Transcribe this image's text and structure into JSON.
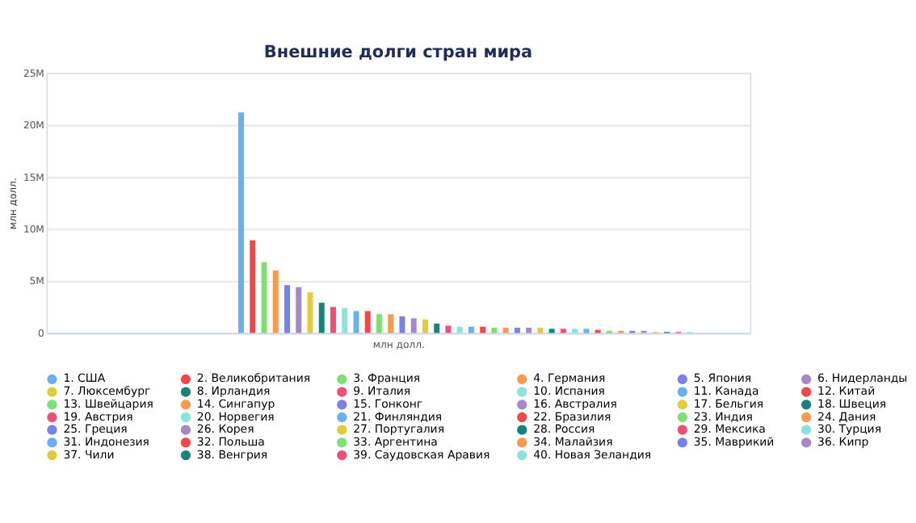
{
  "chart_data": {
    "type": "bar",
    "title": "Внешние долги стран мира",
    "xlabel": "млн долл.",
    "ylabel": "млн долл.",
    "categories": [
      null
    ],
    "series": [
      {
        "name": "1. США",
        "color": "#6ab0ee",
        "values": [
          21.2
        ]
      },
      {
        "name": "2. Великобритания",
        "color": "#f04848",
        "values": [
          8.9
        ]
      },
      {
        "name": "3. Франция",
        "color": "#7ee071",
        "values": [
          6.8
        ]
      },
      {
        "name": "4. Германия",
        "color": "#f79a4e",
        "values": [
          6.0
        ]
      },
      {
        "name": "5. Япония",
        "color": "#7b7fe8",
        "values": [
          4.6
        ]
      },
      {
        "name": "6. Нидерланды",
        "color": "#a687c7",
        "values": [
          4.4
        ]
      },
      {
        "name": "7. Люксембург",
        "color": "#e3cb3c",
        "values": [
          3.9
        ]
      },
      {
        "name": "8. Ирландия",
        "color": "#16847d",
        "values": [
          2.9
        ]
      },
      {
        "name": "9. Италия",
        "color": "#ee4f73",
        "values": [
          2.5
        ]
      },
      {
        "name": "10. Испания",
        "color": "#88e4dc",
        "values": [
          2.4
        ]
      },
      {
        "name": "11. Канада",
        "color": "#6ab0ee",
        "values": [
          2.1
        ]
      },
      {
        "name": "12. Китай",
        "color": "#f04848",
        "values": [
          2.1
        ]
      },
      {
        "name": "13. Швейцария",
        "color": "#7ee071",
        "values": [
          1.8
        ]
      },
      {
        "name": "14. Сингапур",
        "color": "#f79a4e",
        "values": [
          1.8
        ]
      },
      {
        "name": "15. Гонконг",
        "color": "#7b7fe8",
        "values": [
          1.6
        ]
      },
      {
        "name": "16. Австралия",
        "color": "#a687c7",
        "values": [
          1.4
        ]
      },
      {
        "name": "17. Бельгия",
        "color": "#e3cb3c",
        "values": [
          1.3
        ]
      },
      {
        "name": "18. Швеция",
        "color": "#16847d",
        "values": [
          0.9
        ]
      },
      {
        "name": "19. Австрия",
        "color": "#ee4f73",
        "values": [
          0.7
        ]
      },
      {
        "name": "20. Норвегия",
        "color": "#88e4dc",
        "values": [
          0.6
        ]
      },
      {
        "name": "21. Финляндия",
        "color": "#6ab0ee",
        "values": [
          0.6
        ]
      },
      {
        "name": "22. Бразилия",
        "color": "#f04848",
        "values": [
          0.6
        ]
      },
      {
        "name": "23. Индия",
        "color": "#7ee071",
        "values": [
          0.5
        ]
      },
      {
        "name": "24. Дания",
        "color": "#f79a4e",
        "values": [
          0.5
        ]
      },
      {
        "name": "25. Греция",
        "color": "#7b7fe8",
        "values": [
          0.5
        ]
      },
      {
        "name": "26. Корея",
        "color": "#a687c7",
        "values": [
          0.5
        ]
      },
      {
        "name": "27. Португалия",
        "color": "#e3cb3c",
        "values": [
          0.5
        ]
      },
      {
        "name": "28. Россия",
        "color": "#16847d",
        "values": [
          0.4
        ]
      },
      {
        "name": "29. Мексика",
        "color": "#ee4f73",
        "values": [
          0.4
        ]
      },
      {
        "name": "30. Турция",
        "color": "#88e4dc",
        "values": [
          0.4
        ]
      },
      {
        "name": "31. Индонезия",
        "color": "#6ab0ee",
        "values": [
          0.4
        ]
      },
      {
        "name": "32. Польша",
        "color": "#f04848",
        "values": [
          0.3
        ]
      },
      {
        "name": "33. Аргентина",
        "color": "#7ee071",
        "values": [
          0.2
        ]
      },
      {
        "name": "34. Малайзия",
        "color": "#f79a4e",
        "values": [
          0.2
        ]
      },
      {
        "name": "35. Маврикий",
        "color": "#7b7fe8",
        "values": [
          0.2
        ]
      },
      {
        "name": "36. Кипр",
        "color": "#a687c7",
        "values": [
          0.2
        ]
      },
      {
        "name": "37. Чили",
        "color": "#e3cb3c",
        "values": [
          0.1
        ]
      },
      {
        "name": "38. Венгрия",
        "color": "#16847d",
        "values": [
          0.1
        ]
      },
      {
        "name": "39. Саудовская Аравия",
        "color": "#ee4f73",
        "values": [
          0.1
        ]
      },
      {
        "name": "40. Новая Зеландия",
        "color": "#88e4dc",
        "values": [
          0.1
        ]
      }
    ],
    "ylim": [
      0,
      25
    ],
    "yticks": [
      0,
      {
        "value": 5,
        "label": "5M"
      },
      {
        "value": 10,
        "label": "10M"
      },
      {
        "value": 15,
        "label": "15M"
      },
      {
        "value": 20,
        "label": "20M"
      },
      {
        "value": 25,
        "label": "25M"
      }
    ],
    "grid": "y",
    "legend": "bottom",
    "marker": "circle"
  }
}
